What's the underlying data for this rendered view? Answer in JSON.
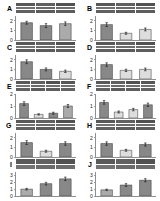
{
  "chart_data": [
    {
      "type": "heatmap",
      "title": "A",
      "cells": [
        [
          0.35,
          0.38,
          0.32
        ],
        [
          0.45,
          0.42,
          0.43
        ],
        [
          0.38,
          0.36,
          0.37
        ]
      ],
      "zlim": [
        0,
        1
      ],
      "tick_labels": false
    },
    {
      "type": "bar",
      "categories": [
        null,
        null,
        null
      ],
      "values": [
        1.8,
        1.5,
        1.7
      ],
      "errors": [
        0.15,
        0.2,
        0.18
      ],
      "colors": [
        "#888888",
        "#888888",
        "#aaaaaa"
      ],
      "ylim": [
        0,
        2.5
      ],
      "yticks": [
        0,
        1,
        2
      ],
      "grid": false,
      "tick_labels": "y"
    },
    {
      "type": "heatmap",
      "title": "B",
      "cells": [
        [
          0.35,
          0.38,
          0.32
        ],
        [
          0.45,
          0.42,
          0.43
        ],
        [
          0.38,
          0.36,
          0.37
        ]
      ],
      "zlim": [
        0,
        1
      ],
      "tick_labels": false
    },
    {
      "type": "bar",
      "categories": [
        null,
        null,
        null
      ],
      "values": [
        1.6,
        0.7,
        1.1
      ],
      "errors": [
        0.2,
        0.1,
        0.15
      ],
      "colors": [
        "#888888",
        "#dddddd",
        "#dddddd"
      ],
      "ylim": [
        0,
        2.5
      ],
      "yticks": [
        0,
        1,
        2
      ],
      "grid": false,
      "tick_labels": "y"
    },
    {
      "type": "heatmap",
      "title": "C",
      "cells": [
        [
          0.35,
          0.38,
          0.32
        ],
        [
          0.45,
          0.42,
          0.43
        ],
        [
          0.38,
          0.36,
          0.37
        ]
      ],
      "zlim": [
        0,
        1
      ],
      "tick_labels": false
    },
    {
      "type": "bar",
      "categories": [
        null,
        null,
        null
      ],
      "values": [
        1.8,
        1.0,
        0.8
      ],
      "errors": [
        0.2,
        0.15,
        0.12
      ],
      "colors": [
        "#888888",
        "#888888",
        "#dddddd"
      ],
      "ylim": [
        0,
        2.5
      ],
      "yticks": [
        0,
        1,
        2
      ],
      "grid": false,
      "tick_labels": "y"
    },
    {
      "type": "heatmap",
      "title": "D",
      "cells": [
        [
          0.35,
          0.38,
          0.32
        ],
        [
          0.45,
          0.42,
          0.43
        ],
        [
          0.38,
          0.36,
          0.37
        ]
      ],
      "zlim": [
        0,
        1
      ],
      "tick_labels": false
    },
    {
      "type": "bar",
      "categories": [
        null,
        null,
        null
      ],
      "values": [
        1.5,
        0.9,
        1.0
      ],
      "errors": [
        0.18,
        0.12,
        0.14
      ],
      "colors": [
        "#888888",
        "#dddddd",
        "#dddddd"
      ],
      "ylim": [
        0,
        2.5
      ],
      "yticks": [
        0,
        1,
        2
      ],
      "grid": false,
      "tick_labels": "y"
    },
    {
      "type": "heatmap",
      "title": "E",
      "cells": [
        [
          0.35,
          0.38,
          0.32,
          0.34
        ],
        [
          0.45,
          0.42,
          0.43,
          0.44
        ],
        [
          0.38,
          0.36,
          0.37,
          0.39
        ]
      ],
      "zlim": [
        0,
        1
      ],
      "tick_labels": false
    },
    {
      "type": "bar",
      "categories": [
        null,
        null,
        null,
        null
      ],
      "values": [
        1.2,
        0.3,
        0.4,
        1.0
      ],
      "errors": [
        0.15,
        0.05,
        0.08,
        0.12
      ],
      "colors": [
        "#888888",
        "#dddddd",
        "#888888",
        "#aaaaaa"
      ],
      "ylim": [
        0,
        2.0
      ],
      "yticks": [
        0,
        1,
        2
      ],
      "grid": false,
      "tick_labels": "y"
    },
    {
      "type": "heatmap",
      "title": "F",
      "cells": [
        [
          0.35,
          0.38,
          0.32,
          0.34
        ],
        [
          0.45,
          0.42,
          0.43,
          0.44
        ],
        [
          0.38,
          0.36,
          0.37,
          0.39
        ]
      ],
      "zlim": [
        0,
        1
      ],
      "tick_labels": false
    },
    {
      "type": "bar",
      "categories": [
        null,
        null,
        null,
        null
      ],
      "values": [
        1.3,
        0.5,
        0.7,
        1.1
      ],
      "errors": [
        0.15,
        0.08,
        0.1,
        0.14
      ],
      "colors": [
        "#888888",
        "#dddddd",
        "#dddddd",
        "#888888"
      ],
      "ylim": [
        0,
        2.0
      ],
      "yticks": [
        0,
        1,
        2
      ],
      "grid": false,
      "tick_labels": "y"
    },
    {
      "type": "heatmap",
      "title": "G",
      "cells": [
        [
          0.35,
          0.38,
          0.32
        ],
        [
          0.45,
          0.42,
          0.43
        ],
        [
          0.38,
          0.36,
          0.37
        ]
      ],
      "zlim": [
        0,
        1
      ],
      "tick_labels": false
    },
    {
      "type": "bar",
      "categories": [
        null,
        null,
        null
      ],
      "values": [
        1.5,
        0.6,
        1.4
      ],
      "errors": [
        0.2,
        0.1,
        0.18
      ],
      "colors": [
        "#888888",
        "#dddddd",
        "#888888"
      ],
      "ylim": [
        0,
        2.5
      ],
      "yticks": [
        0,
        1,
        2
      ],
      "grid": false,
      "tick_labels": "y"
    },
    {
      "type": "heatmap",
      "title": "H",
      "cells": [
        [
          0.35,
          0.38,
          0.32
        ],
        [
          0.45,
          0.42,
          0.43
        ],
        [
          0.38,
          0.36,
          0.37
        ]
      ],
      "zlim": [
        0,
        1
      ],
      "tick_labels": false
    },
    {
      "type": "bar",
      "categories": [
        null,
        null,
        null
      ],
      "values": [
        1.4,
        0.7,
        1.3
      ],
      "errors": [
        0.18,
        0.1,
        0.16
      ],
      "colors": [
        "#888888",
        "#dddddd",
        "#888888"
      ],
      "ylim": [
        0,
        2.5
      ],
      "yticks": [
        0,
        1,
        2
      ],
      "grid": false,
      "tick_labels": "y"
    },
    {
      "type": "heatmap",
      "title": "I",
      "cells": [
        [
          0.35,
          0.38,
          0.32
        ],
        [
          0.45,
          0.42,
          0.43
        ]
      ],
      "zlim": [
        0,
        1
      ],
      "tick_labels": false
    },
    {
      "type": "bar",
      "categories": [
        null,
        null,
        null
      ],
      "values": [
        1.0,
        1.8,
        2.5
      ],
      "errors": [
        0.12,
        0.2,
        0.25
      ],
      "colors": [
        "#aaaaaa",
        "#888888",
        "#888888"
      ],
      "ylim": [
        0,
        3.5
      ],
      "yticks": [
        0,
        1,
        2,
        3
      ],
      "grid": false,
      "tick_labels": "y"
    },
    {
      "type": "heatmap",
      "title": "J",
      "cells": [
        [
          0.35,
          0.38,
          0.32
        ],
        [
          0.45,
          0.42,
          0.43
        ]
      ],
      "zlim": [
        0,
        1
      ],
      "tick_labels": false
    },
    {
      "type": "bar",
      "categories": [
        null,
        null,
        null
      ],
      "values": [
        0.9,
        1.6,
        2.3
      ],
      "errors": [
        0.1,
        0.2,
        0.22
      ],
      "colors": [
        "#aaaaaa",
        "#888888",
        "#888888"
      ],
      "ylim": [
        0,
        3.5
      ],
      "yticks": [
        0,
        1,
        2,
        3
      ],
      "grid": false,
      "tick_labels": "y"
    }
  ]
}
